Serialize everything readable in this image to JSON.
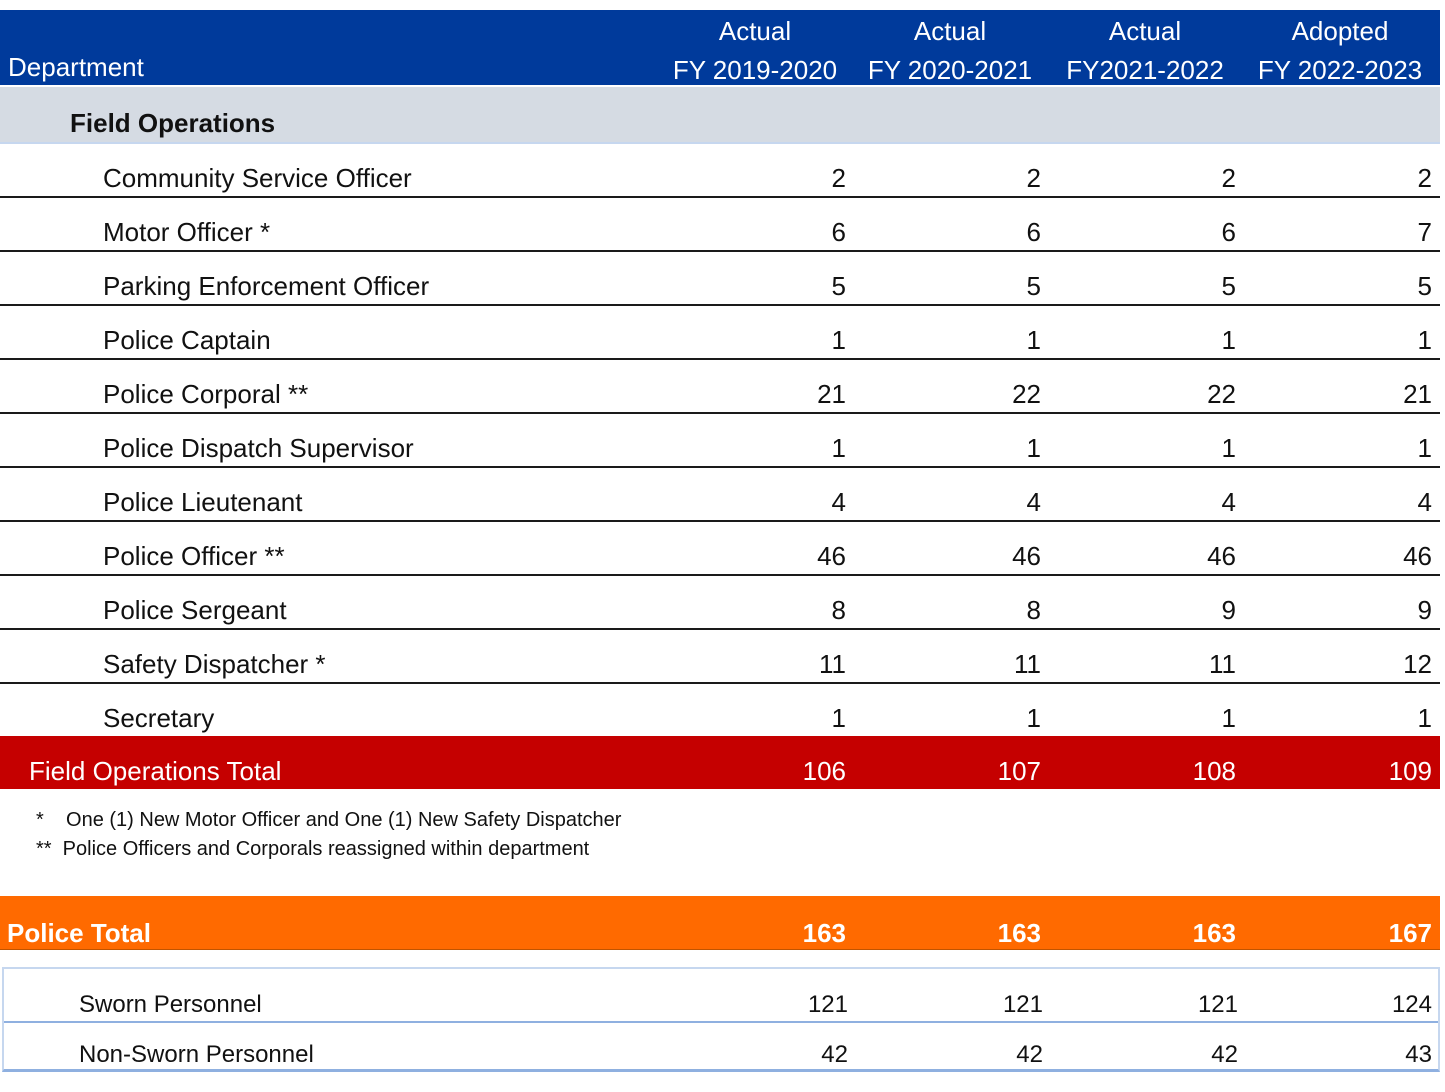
{
  "header": {
    "department_label": "Department",
    "columns": [
      {
        "line1": "Actual",
        "line2": "FY 2019-2020"
      },
      {
        "line1": "Actual",
        "line2": "FY 2020-2021"
      },
      {
        "line1": "Actual",
        "line2": "FY2021-2022"
      },
      {
        "line1": "Adopted",
        "line2": "FY 2022-2023"
      }
    ]
  },
  "section": {
    "title": "Field Operations"
  },
  "rows": [
    {
      "name": "Community Service Officer",
      "values": [
        "2",
        "2",
        "2",
        "2"
      ]
    },
    {
      "name": "Motor Officer *",
      "values": [
        "6",
        "6",
        "6",
        "7"
      ]
    },
    {
      "name": "Parking Enforcement Officer",
      "values": [
        "5",
        "5",
        "5",
        "5"
      ]
    },
    {
      "name": "Police Captain",
      "values": [
        "1",
        "1",
        "1",
        "1"
      ]
    },
    {
      "name": "Police Corporal **",
      "values": [
        "21",
        "22",
        "22",
        "21"
      ]
    },
    {
      "name": "Police Dispatch Supervisor",
      "values": [
        "1",
        "1",
        "1",
        "1"
      ]
    },
    {
      "name": "Police Lieutenant",
      "values": [
        "4",
        "4",
        "4",
        "4"
      ]
    },
    {
      "name": "Police Officer **",
      "values": [
        "46",
        "46",
        "46",
        "46"
      ]
    },
    {
      "name": "Police Sergeant",
      "values": [
        "8",
        "8",
        "9",
        "9"
      ]
    },
    {
      "name": "Safety Dispatcher *",
      "values": [
        "11",
        "11",
        "11",
        "12"
      ]
    },
    {
      "name": "Secretary",
      "values": [
        "1",
        "1",
        "1",
        "1"
      ]
    }
  ],
  "field_total": {
    "name": "Field Operations Total",
    "values": [
      "106",
      "107",
      "108",
      "109"
    ]
  },
  "notes": [
    "*    One (1) New Motor Officer and One (1) New Safety Dispatcher",
    "**  Police Officers and Corporals reassigned within department"
  ],
  "police_total": {
    "name": "Police Total",
    "values": [
      "163",
      "163",
      "163",
      "167"
    ]
  },
  "sworn": {
    "name": "Sworn Personnel",
    "values": [
      "121",
      "121",
      "121",
      "124"
    ]
  },
  "non_sworn": {
    "name": "Non-Sworn Personnel",
    "values": [
      "42",
      "42",
      "42",
      "43"
    ]
  },
  "colors": {
    "header": "#003a9b",
    "section": "#d5dbe3",
    "field_total": "#c50000",
    "police_total": "#ff6a00"
  }
}
